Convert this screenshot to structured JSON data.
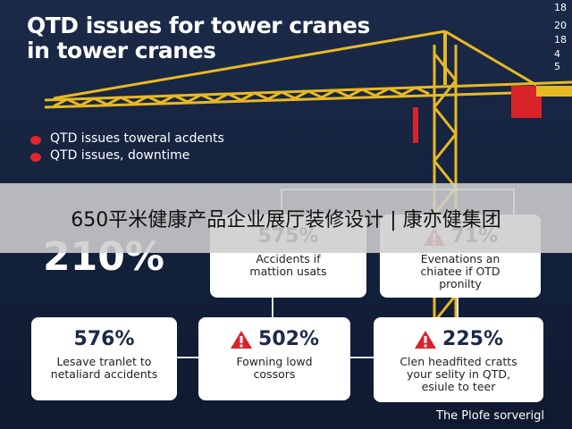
{
  "header": {
    "title_lines": [
      "QTD issues for tower cranes",
      "in tower cranes"
    ],
    "side_numbers": [
      "18",
      "20",
      "18",
      "4",
      "5"
    ]
  },
  "legend": [
    "QTD issues toweral acdents",
    "QTD issues, downtime"
  ],
  "banner": "650平米健康产品企业展厅装修设计 | 康亦健集团",
  "headline": "210%",
  "cards": [
    {
      "value": "575%",
      "lines": [
        "Accidents if",
        "mattion usats"
      ]
    },
    {
      "value": "71%",
      "lines": [
        "Evenations an",
        "chiatee if OTD",
        "pronilty"
      ]
    },
    {
      "value": "576%",
      "lines": [
        "Lesave tranlet to",
        "netaliard accidents"
      ]
    },
    {
      "value": "502%",
      "lines": [
        "Fowning lowd",
        "cossors"
      ]
    },
    {
      "value": "225%",
      "lines": [
        "Clen headfited cratts",
        "your selity in QTD,",
        "esiule to teer"
      ]
    }
  ],
  "footer": "The Plofe sorverigl"
}
